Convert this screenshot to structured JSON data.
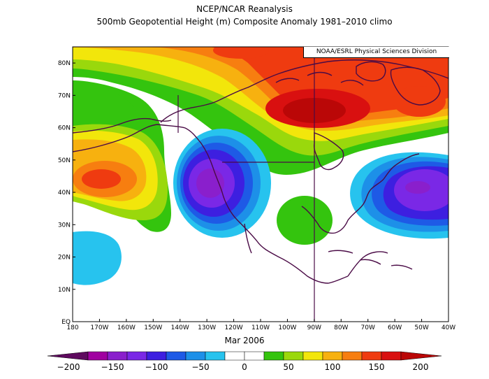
{
  "title": {
    "line1": "NCEP/NCAR Reanalysis",
    "line2": "500mb Geopotential Height (m) Composite Anomaly 1981–2010 climo"
  },
  "credit": "NOAA/ESRL Physical Sciences Division",
  "time_label": "Mar 2006",
  "map_data": {
    "type": "heatmap",
    "lon_range": [
      -180,
      -40
    ],
    "lat_range": [
      0,
      85
    ],
    "x_ticks": [
      "180",
      "170W",
      "160W",
      "150W",
      "140W",
      "130W",
      "120W",
      "110W",
      "100W",
      "90W",
      "80W",
      "70W",
      "60W",
      "50W",
      "40W"
    ],
    "y_ticks": [
      "EQ",
      "10N",
      "20N",
      "30N",
      "40N",
      "50N",
      "60N",
      "70N",
      "80N"
    ],
    "colorbar": {
      "labels": [
        "−200",
        "−150",
        "−100",
        "−50",
        "0",
        "50",
        "100",
        "150",
        "200"
      ],
      "colors": [
        "#5e0a5e",
        "#a000a0",
        "#8a1fcc",
        "#7a28e6",
        "#3d1fe0",
        "#1e5ae6",
        "#1d90e8",
        "#27c3ee",
        "#ffffff",
        "#ffffff",
        "#34c40e",
        "#9ad80c",
        "#f2e60b",
        "#f7b10f",
        "#f77e10",
        "#ef3b10",
        "#d91010",
        "#ba0707"
      ]
    },
    "anomaly_centers": [
      {
        "lon": -95,
        "lat": 65,
        "value": 180
      },
      {
        "lon": -80,
        "lat": 80,
        "value": 130
      },
      {
        "lon": -56,
        "lat": 68,
        "value": 130
      },
      {
        "lon": -175,
        "lat": 44,
        "value": 110
      },
      {
        "lon": -126,
        "lat": 43,
        "value": -140
      },
      {
        "lon": -52,
        "lat": 42,
        "value": -145
      },
      {
        "lon": -162,
        "lat": 63,
        "value": 40
      },
      {
        "lon": -92,
        "lat": 32,
        "value": 40
      },
      {
        "lon": -180,
        "lat": 22,
        "value": -45
      }
    ]
  }
}
